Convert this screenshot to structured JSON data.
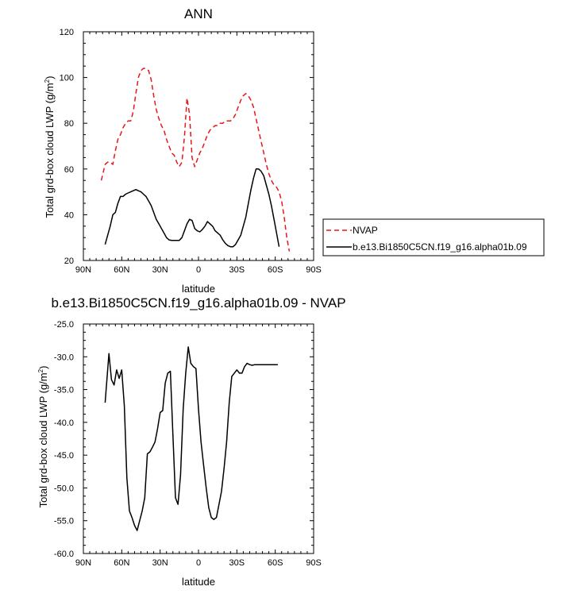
{
  "chart_data": [
    {
      "type": "line",
      "title": "ANN",
      "xlabel": "latitude",
      "ylabel": "Total grd-box cloud LWP (g/m²)",
      "ylabel_main": "Total grd-box cloud LWP (g/m",
      "ylabel_sup": "2",
      "ylabel_close": ")",
      "xlim": [
        90,
        -90
      ],
      "ylim": [
        20,
        120
      ],
      "x_ticks": [
        90,
        60,
        30,
        0,
        -30,
        -60,
        -90
      ],
      "x_tick_labels": [
        "90N",
        "60N",
        "30N",
        "0",
        "30S",
        "60S",
        "90S"
      ],
      "y_ticks": [
        20,
        40,
        60,
        80,
        100,
        120
      ],
      "y_tick_labels": [
        "20",
        "40",
        "60",
        "80",
        "100",
        "120"
      ],
      "legend": {
        "placement": "right",
        "entries": [
          "NVAP",
          "b.e13.Bi1850C5CN.f19_g16.alpha01b.09"
        ]
      },
      "series": [
        {
          "name": "NVAP",
          "color": "#e8161b",
          "dash": "dashed",
          "x": [
            76,
            73,
            71,
            69,
            67,
            65,
            63,
            61,
            59,
            57,
            55,
            53,
            51,
            49,
            47,
            45,
            43,
            41,
            39,
            37,
            35,
            33,
            31,
            29,
            27,
            25,
            23,
            21,
            19,
            17,
            15,
            13,
            11,
            9,
            7,
            5,
            3,
            1,
            -1,
            -3,
            -5,
            -7,
            -9,
            -11,
            -13,
            -15,
            -17,
            -19,
            -21,
            -23,
            -25,
            -27,
            -29,
            -31,
            -33,
            -35,
            -37,
            -39,
            -41,
            -43,
            -45,
            -47,
            -49,
            -51,
            -53,
            -55,
            -57,
            -59,
            -61,
            -63,
            -65,
            -67,
            -69,
            -71,
            -73,
            -75,
            -77
          ],
          "y": [
            55,
            62,
            63,
            63,
            62,
            68,
            73,
            75,
            78,
            80,
            81,
            81,
            85,
            93,
            100,
            103,
            104,
            104,
            103,
            99,
            92,
            86,
            82,
            79,
            77,
            73,
            70,
            67,
            66,
            63,
            61,
            63,
            74,
            91,
            84,
            65,
            61,
            64,
            67,
            69,
            72,
            75,
            77,
            78,
            79,
            79,
            80,
            80,
            81,
            81,
            81,
            82,
            84,
            87,
            90,
            92,
            93,
            92,
            90,
            87,
            82,
            77,
            72,
            67,
            62,
            58,
            55,
            53,
            52,
            50,
            46,
            39,
            30,
            24,
            null,
            null,
            null
          ]
        },
        {
          "name": "b.e13.Bi1850C5CN.f19_g16.alpha01b.09",
          "color": "#000000",
          "dash": "solid",
          "x": [
            73,
            71,
            69,
            67,
            65,
            63,
            61,
            59,
            57,
            55,
            53,
            51,
            49,
            47,
            45,
            43,
            41,
            39,
            37,
            35,
            33,
            31,
            29,
            27,
            25,
            23,
            21,
            19,
            17,
            15,
            13,
            11,
            9,
            7,
            5,
            3,
            1,
            -1,
            -3,
            -5,
            -7,
            -9,
            -11,
            -13,
            -15,
            -17,
            -19,
            -21,
            -23,
            -25,
            -27,
            -29,
            -31,
            -33,
            -35,
            -37,
            -39,
            -41,
            -43,
            -45,
            -47,
            -49,
            -51,
            -53,
            -55,
            -57,
            -59,
            -61,
            -63
          ],
          "y": [
            27,
            31,
            35,
            40,
            41,
            45,
            48,
            48,
            49,
            49.5,
            50,
            50.5,
            51,
            50.5,
            50,
            49,
            48,
            46,
            44,
            41,
            38,
            36,
            34,
            32,
            30,
            29,
            28.8,
            28.8,
            28.8,
            28.8,
            30,
            33,
            36,
            38,
            37.5,
            34,
            33,
            32.5,
            33.5,
            35,
            37,
            36,
            35,
            33,
            32,
            31,
            29,
            27.5,
            26.5,
            26,
            26,
            27,
            29,
            31,
            35,
            39,
            45,
            51,
            56,
            60,
            60,
            59,
            57,
            53,
            49,
            44,
            38,
            32,
            26
          ]
        }
      ]
    },
    {
      "type": "line",
      "title": "b.e13.Bi1850C5CN.f19_g16.alpha01b.09 - NVAP",
      "xlabel": "latitude",
      "ylabel": "Total grd-box cloud LWP (g/m²)",
      "ylabel_main": "Total grd-box cloud LWP (g/m",
      "ylabel_sup": "2",
      "ylabel_close": ")",
      "xlim": [
        90,
        -90
      ],
      "ylim": [
        -60,
        -25
      ],
      "x_ticks": [
        90,
        60,
        30,
        0,
        -30,
        -60,
        -90
      ],
      "x_tick_labels": [
        "90N",
        "60N",
        "30N",
        "0",
        "30S",
        "60S",
        "90S"
      ],
      "y_ticks": [
        -60,
        -55,
        -50,
        -45,
        -40,
        -35,
        -30,
        -25
      ],
      "y_tick_labels": [
        "-60.0",
        "-55.0",
        "-50.0",
        "-45.0",
        "-40.0",
        "-35.0",
        "-30.0",
        "-25.0"
      ],
      "series": [
        {
          "color": "#000000",
          "dash": "solid",
          "x": [
            73,
            70,
            68,
            66,
            64,
            62,
            60,
            58,
            56,
            54,
            52,
            50,
            48,
            46,
            44,
            42,
            40,
            38,
            36,
            34,
            32,
            30,
            28,
            26,
            24,
            22,
            20,
            18,
            16,
            14,
            12,
            10,
            8,
            6,
            4,
            2,
            0,
            -2,
            -4,
            -6,
            -8,
            -10,
            -12,
            -14,
            -16,
            -18,
            -20,
            -22,
            -24,
            -26,
            -28,
            -30,
            -32,
            -34,
            -36,
            -38,
            -40,
            -42,
            -44,
            -46,
            -48,
            -50,
            -52,
            -54,
            -56,
            -58,
            -60,
            -62
          ],
          "y": [
            -37,
            -29.5,
            -33.5,
            -34.3,
            -32,
            -33.3,
            -32,
            -37.5,
            -48.5,
            -53.5,
            -54.5,
            -55.7,
            -56.5,
            -55,
            -53.5,
            -51.5,
            -44.8,
            -44.5,
            -43.8,
            -43,
            -41,
            -38.5,
            -38.2,
            -34,
            -32.5,
            -32.2,
            -42,
            -51.5,
            -52.5,
            -48,
            -38,
            -32.5,
            -28.5,
            -31,
            -31.5,
            -31.8,
            -38,
            -43,
            -46.5,
            -50,
            -53,
            -54.5,
            -54.8,
            -54.5,
            -52.5,
            -50.5,
            -47,
            -43,
            -37,
            -33,
            -32.5,
            -32,
            -32.5,
            -32.5,
            -31.5,
            -31,
            -31.2,
            -31.3,
            -31.2,
            -31.2,
            -31.2,
            -31.2,
            -31.2,
            -31.2,
            -31.2,
            -31.2,
            -31.2,
            -31.2
          ]
        }
      ]
    }
  ]
}
